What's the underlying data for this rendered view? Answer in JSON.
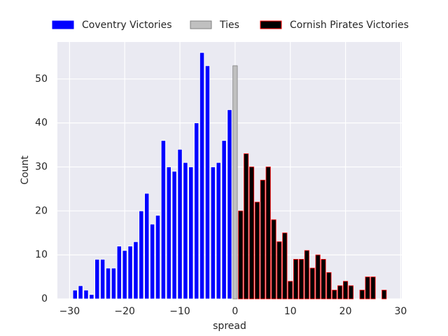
{
  "chart_data": {
    "type": "bar",
    "x_label": "spread",
    "y_label": "Count",
    "series": [
      {
        "name": "Coventry Victories",
        "color": "#0000ff",
        "edgecolor": "#ffffff",
        "x": [
          -29,
          -28,
          -27,
          -26,
          -25,
          -24,
          -23,
          -22,
          -21,
          -20,
          -19,
          -18,
          -17,
          -16,
          -15,
          -14,
          -13,
          -12,
          -11,
          -10,
          -9,
          -8,
          -7,
          -6,
          -5,
          -4,
          -3,
          -2,
          -1
        ],
        "values": [
          2,
          3,
          2,
          1,
          9,
          9,
          7,
          7,
          12,
          11,
          12,
          13,
          20,
          24,
          17,
          19,
          36,
          30,
          29,
          34,
          31,
          30,
          40,
          56,
          53,
          30,
          31,
          36,
          43
        ]
      },
      {
        "name": "Ties",
        "color": "#c0c0c0",
        "edgecolor": "#808080",
        "x": [
          0
        ],
        "values": [
          53
        ]
      },
      {
        "name": "Cornish Pirates Victories",
        "color": "#000000",
        "edgecolor": "#ff0000",
        "x": [
          1,
          2,
          3,
          4,
          5,
          6,
          7,
          8,
          9,
          10,
          11,
          12,
          13,
          14,
          15,
          16,
          17,
          18,
          19,
          20,
          21,
          23,
          24,
          25,
          27
        ],
        "values": [
          20,
          33,
          30,
          22,
          27,
          30,
          18,
          13,
          15,
          4,
          9,
          9,
          11,
          7,
          10,
          9,
          6,
          2,
          3,
          4,
          3,
          2,
          5,
          5,
          2
        ]
      }
    ],
    "xlim": [
      -32.2,
      30.2
    ],
    "xticks": [
      {
        "value": -30,
        "label": "−30"
      },
      {
        "value": -20,
        "label": "−20"
      },
      {
        "value": -10,
        "label": "−10"
      },
      0,
      10,
      20,
      30
    ],
    "ylim": [
      0,
      58.4
    ],
    "yticks": [
      0,
      10,
      20,
      30,
      40,
      50
    ],
    "grid": true,
    "legend": "top"
  }
}
